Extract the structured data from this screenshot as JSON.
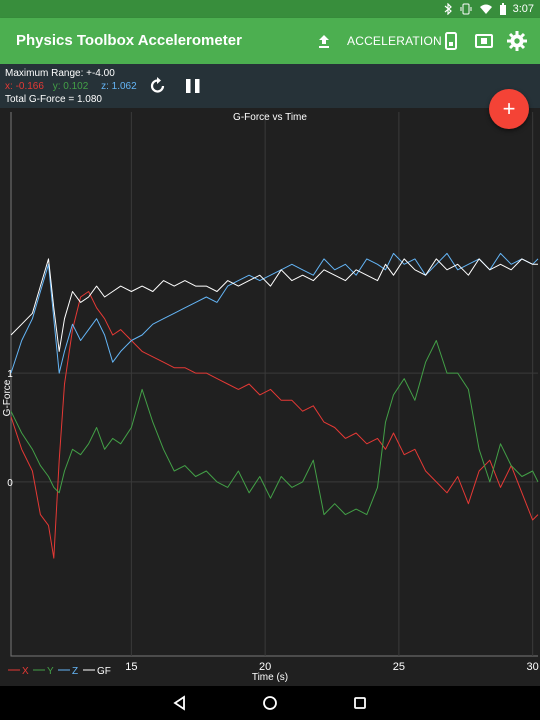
{
  "status_bar": {
    "icons": [
      "bluetooth-icon",
      "vibrate-icon",
      "wifi-icon",
      "battery-icon"
    ],
    "time": "3:07"
  },
  "app_bar": {
    "title": "Physics Toolbox Accelerometer",
    "upload_icon": "upload-icon",
    "mode_label": "ACCELERATION",
    "icons": [
      "phone-icon",
      "display-icon",
      "gear-icon"
    ]
  },
  "info": {
    "max_range": "Maximum Range: +-4.00",
    "x_label": "x:",
    "x_value": "-0.166",
    "y_label": "y:",
    "y_value": "0.102",
    "z_label": "z:",
    "z_value": "1.062",
    "total": "Total G-Force = 1.080"
  },
  "controls": {
    "reset_icon": "refresh-icon",
    "pause_icon": "pause-icon",
    "fab_label": "+"
  },
  "colors": {
    "x": "#e53935",
    "y": "#43a047",
    "z": "#64b5f6",
    "gf": "#ffffff",
    "appbar": "#4caf50",
    "fab": "#f44336"
  },
  "chart_data": {
    "type": "line",
    "title": "G-Force vs Time",
    "xlabel": "Time (s)",
    "ylabel": "G-Force",
    "xlim": [
      10.5,
      30.2
    ],
    "ylim": [
      -1.6,
      3.4
    ],
    "x_ticks": [
      15,
      20,
      25,
      30
    ],
    "x_tick_labels": [
      "15",
      "20",
      "25",
      "30"
    ],
    "y_ticks": [
      0,
      1
    ],
    "y_tick_labels": [
      "0",
      "1"
    ],
    "grid": true,
    "legend": "bottom-left",
    "series": [
      {
        "name": "X",
        "color": "#e53935",
        "x": [
          10.5,
          10.9,
          11.3,
          11.6,
          11.9,
          12.1,
          12.3,
          12.5,
          12.8,
          13.1,
          13.4,
          13.7,
          14.0,
          14.3,
          14.6,
          15.0,
          15.4,
          15.8,
          16.2,
          16.6,
          17.0,
          17.4,
          17.8,
          18.2,
          18.6,
          19.0,
          19.4,
          19.8,
          20.2,
          20.6,
          21.0,
          21.4,
          21.8,
          22.2,
          22.6,
          23.0,
          23.4,
          23.8,
          24.2,
          24.5,
          24.8,
          25.2,
          25.6,
          26.0,
          26.4,
          26.8,
          27.2,
          27.6,
          28.0,
          28.4,
          28.8,
          29.2,
          29.6,
          30.0,
          30.2
        ],
        "y": [
          0.6,
          0.3,
          0.1,
          -0.3,
          -0.4,
          -0.7,
          0.2,
          0.9,
          1.4,
          1.7,
          1.75,
          1.6,
          1.5,
          1.35,
          1.4,
          1.3,
          1.2,
          1.15,
          1.1,
          1.05,
          1.05,
          1.0,
          1.0,
          0.95,
          0.9,
          0.85,
          0.9,
          0.8,
          0.85,
          0.75,
          0.75,
          0.65,
          0.7,
          0.55,
          0.5,
          0.4,
          0.45,
          0.35,
          0.4,
          0.3,
          0.45,
          0.25,
          0.3,
          0.1,
          0.0,
          -0.1,
          0.05,
          -0.2,
          0.1,
          0.2,
          -0.05,
          0.15,
          -0.1,
          -0.35,
          -0.3
        ]
      },
      {
        "name": "Y",
        "color": "#43a047",
        "x": [
          10.5,
          10.9,
          11.3,
          11.6,
          11.9,
          12.1,
          12.3,
          12.5,
          12.8,
          13.1,
          13.4,
          13.7,
          14.0,
          14.3,
          14.6,
          15.0,
          15.4,
          15.8,
          16.2,
          16.6,
          17.0,
          17.4,
          17.8,
          18.2,
          18.6,
          19.0,
          19.4,
          19.8,
          20.2,
          20.6,
          21.0,
          21.4,
          21.8,
          22.2,
          22.6,
          23.0,
          23.4,
          23.8,
          24.2,
          24.5,
          24.8,
          25.2,
          25.6,
          26.0,
          26.4,
          26.8,
          27.2,
          27.6,
          28.0,
          28.4,
          28.8,
          29.2,
          29.6,
          30.0,
          30.2
        ],
        "y": [
          0.65,
          0.45,
          0.3,
          0.15,
          0.05,
          -0.05,
          -0.1,
          0.1,
          0.3,
          0.25,
          0.35,
          0.5,
          0.3,
          0.4,
          0.35,
          0.5,
          0.85,
          0.55,
          0.3,
          0.1,
          0.15,
          0.05,
          0.1,
          0.0,
          -0.05,
          0.1,
          -0.1,
          0.05,
          -0.15,
          0.05,
          -0.05,
          0.0,
          0.2,
          -0.3,
          -0.2,
          -0.3,
          -0.25,
          -0.3,
          -0.05,
          0.55,
          0.8,
          0.95,
          0.75,
          1.1,
          1.3,
          1.0,
          1.0,
          0.85,
          0.3,
          0.0,
          0.35,
          0.15,
          0.05,
          0.1,
          0.0
        ]
      },
      {
        "name": "Z",
        "color": "#64b5f6",
        "x": [
          10.5,
          10.9,
          11.3,
          11.6,
          11.9,
          12.1,
          12.3,
          12.5,
          12.8,
          13.1,
          13.4,
          13.7,
          14.0,
          14.3,
          14.6,
          15.0,
          15.4,
          15.8,
          16.2,
          16.6,
          17.0,
          17.4,
          17.8,
          18.2,
          18.6,
          19.0,
          19.4,
          19.8,
          20.2,
          20.6,
          21.0,
          21.4,
          21.8,
          22.2,
          22.6,
          23.0,
          23.4,
          23.8,
          24.2,
          24.5,
          24.8,
          25.2,
          25.6,
          26.0,
          26.4,
          26.8,
          27.2,
          27.6,
          28.0,
          28.4,
          28.8,
          29.2,
          29.6,
          30.0,
          30.2
        ],
        "y": [
          1.0,
          1.3,
          1.5,
          1.75,
          2.0,
          1.5,
          1.0,
          1.2,
          1.45,
          1.3,
          1.4,
          1.5,
          1.35,
          1.1,
          1.2,
          1.3,
          1.35,
          1.45,
          1.5,
          1.55,
          1.6,
          1.65,
          1.7,
          1.65,
          1.8,
          1.85,
          1.9,
          1.85,
          1.9,
          1.95,
          2.0,
          1.95,
          1.9,
          2.05,
          1.95,
          2.0,
          1.9,
          2.05,
          2.0,
          1.95,
          2.1,
          2.0,
          2.05,
          1.9,
          2.0,
          2.1,
          1.95,
          2.0,
          2.05,
          1.95,
          2.1,
          2.0,
          2.05,
          2.0,
          2.05
        ]
      },
      {
        "name": "GF",
        "color": "#ffffff",
        "x": [
          10.5,
          10.9,
          11.3,
          11.6,
          11.9,
          12.1,
          12.3,
          12.5,
          12.8,
          13.1,
          13.4,
          13.7,
          14.0,
          14.3,
          14.6,
          15.0,
          15.4,
          15.8,
          16.2,
          16.6,
          17.0,
          17.4,
          17.8,
          18.2,
          18.6,
          19.0,
          19.4,
          19.8,
          20.2,
          20.6,
          21.0,
          21.4,
          21.8,
          22.2,
          22.6,
          23.0,
          23.4,
          23.8,
          24.2,
          24.5,
          24.8,
          25.2,
          25.6,
          26.0,
          26.4,
          26.8,
          27.2,
          27.6,
          28.0,
          28.4,
          28.8,
          29.2,
          29.6,
          30.0,
          30.2
        ],
        "y": [
          1.35,
          1.45,
          1.55,
          1.8,
          2.05,
          1.6,
          1.2,
          1.5,
          1.75,
          1.65,
          1.7,
          1.8,
          1.7,
          1.75,
          1.8,
          1.75,
          1.8,
          1.75,
          1.85,
          1.8,
          1.85,
          1.8,
          1.8,
          1.75,
          1.85,
          1.8,
          1.85,
          1.9,
          1.8,
          1.95,
          1.85,
          1.9,
          1.85,
          1.95,
          1.9,
          1.85,
          1.95,
          1.9,
          1.85,
          2.0,
          1.9,
          2.05,
          1.95,
          1.9,
          2.05,
          1.95,
          2.0,
          1.9,
          2.05,
          1.95,
          2.0,
          1.95,
          2.05,
          2.0,
          2.0
        ]
      }
    ]
  },
  "nav": {
    "back_icon": "back-icon",
    "home_icon": "home-icon",
    "recents_icon": "recents-icon"
  }
}
